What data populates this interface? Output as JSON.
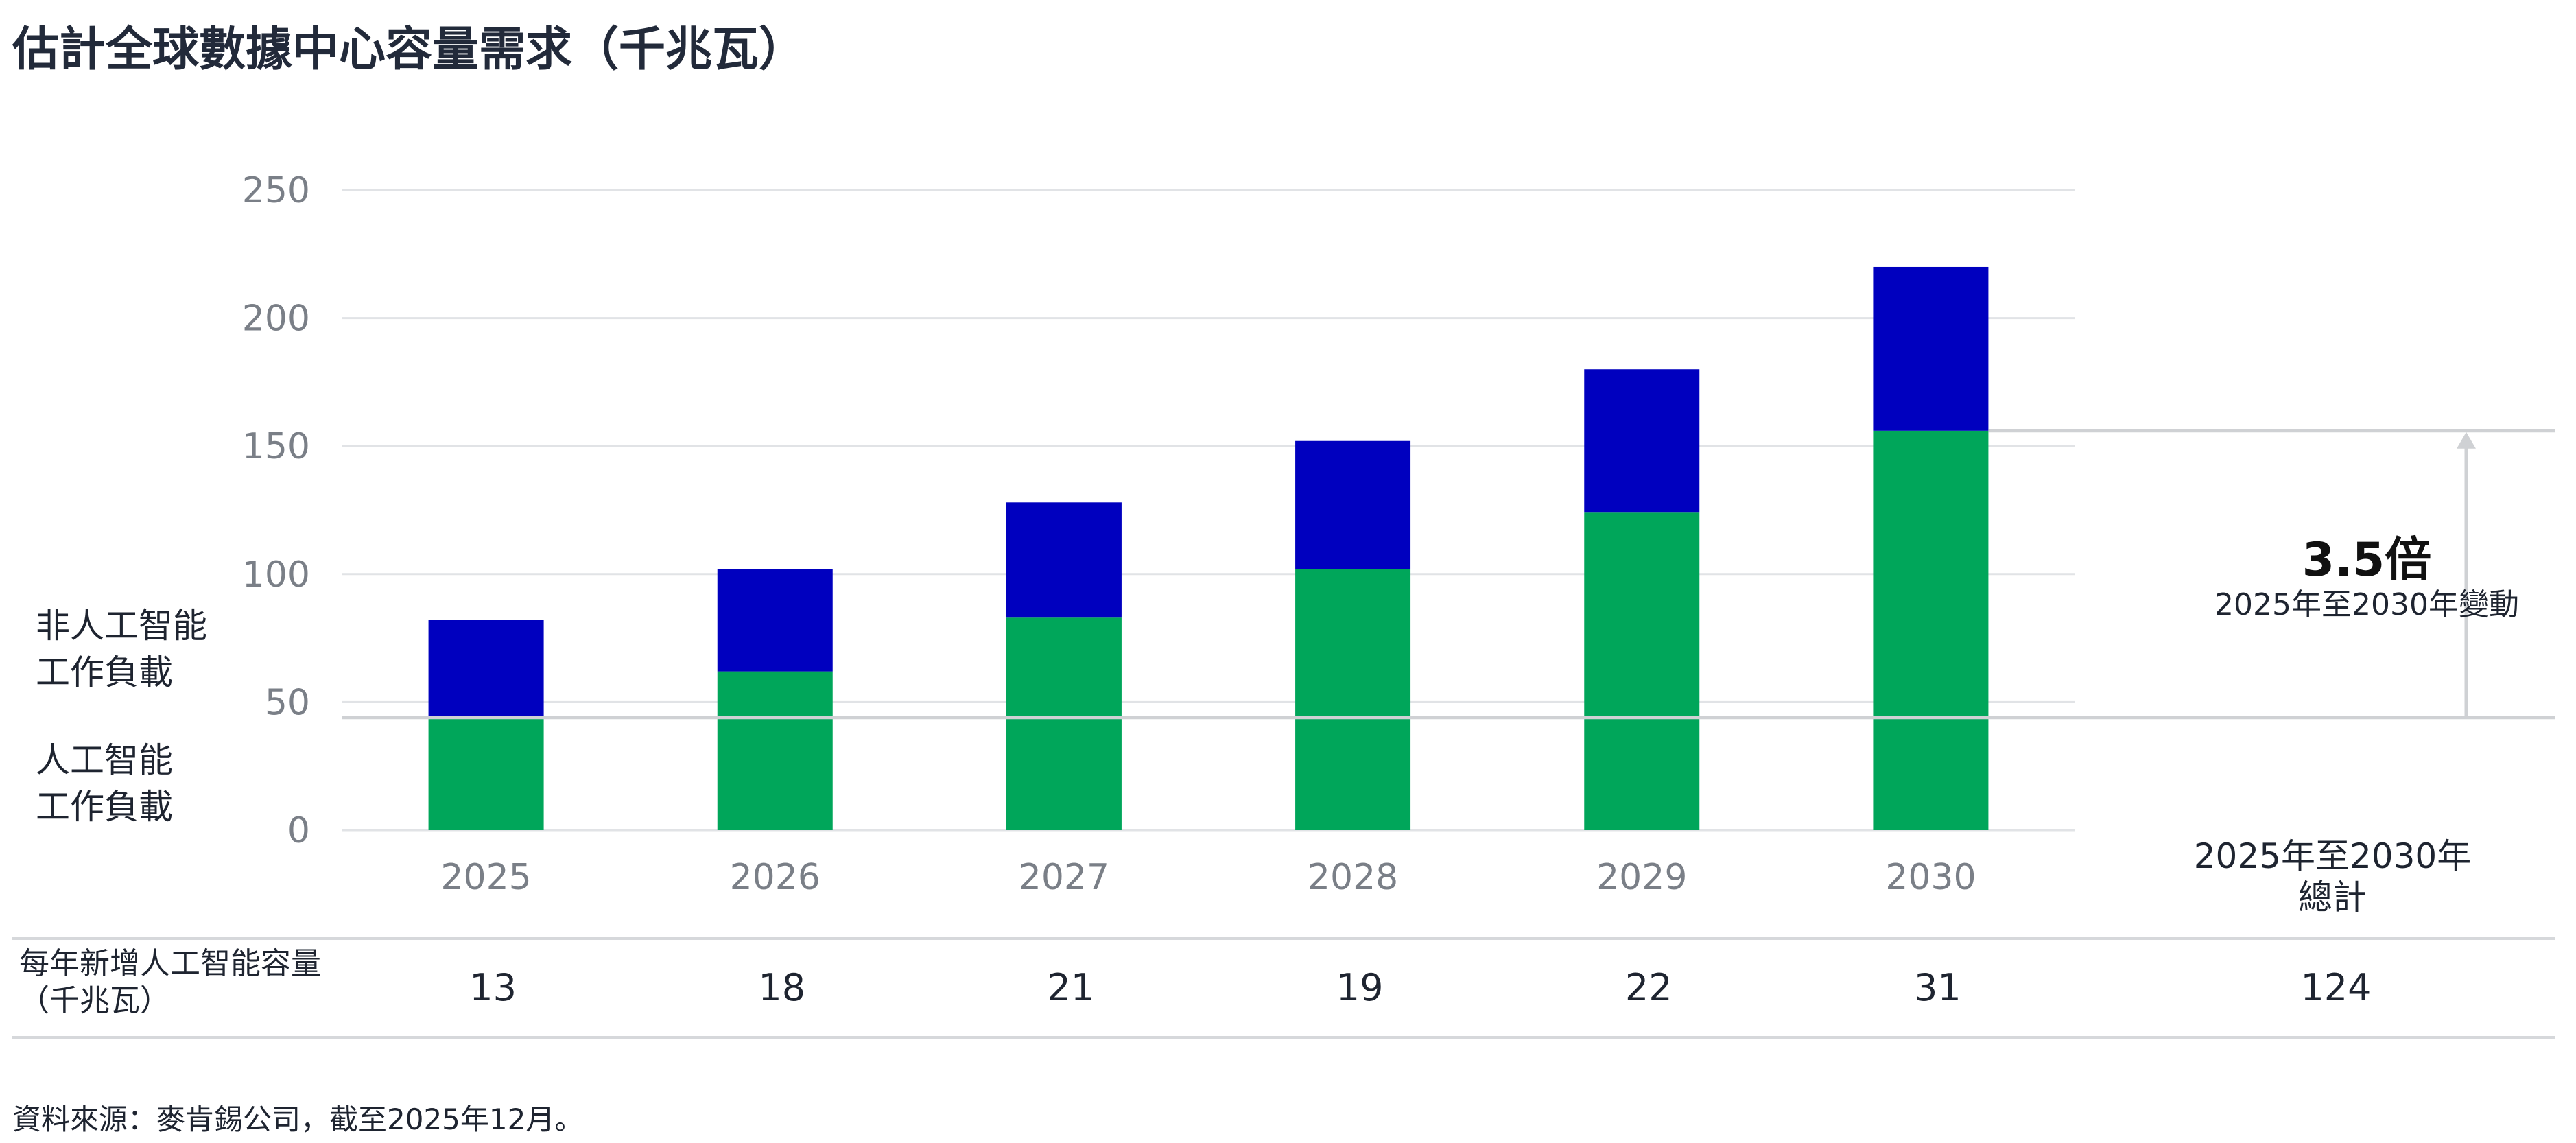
{
  "title": "估計全球數據中心容量需求（千兆瓦）",
  "chart_data": {
    "type": "bar",
    "stacked": true,
    "categories": [
      "2025",
      "2026",
      "2027",
      "2028",
      "2029",
      "2030"
    ],
    "series": [
      {
        "name": "人工智能工作負載",
        "values": [
          44,
          62,
          83,
          102,
          124,
          156
        ],
        "color": "#00a65a"
      },
      {
        "name": "非人工智能工作負載",
        "values": [
          38,
          40,
          45,
          50,
          56,
          64
        ],
        "color": "#0000bf"
      }
    ],
    "ylim": [
      0,
      250
    ],
    "yticks": [
      0,
      50,
      100,
      150,
      200,
      250
    ],
    "grid": true,
    "annotation": {
      "multiple": "3.5倍",
      "subtitle": "2025年至2030年變動"
    }
  },
  "legend": {
    "non_ai": [
      "非人工智能",
      "工作負載"
    ],
    "ai": [
      "人工智能",
      "工作負載"
    ]
  },
  "table": {
    "row_label_line1": "每年新增人工智能容量",
    "row_label_line2": "（千兆瓦）",
    "values": [
      "13",
      "18",
      "21",
      "19",
      "22",
      "31"
    ],
    "total_header_line1": "2025年至2030年",
    "total_header_line2": "總計",
    "total": "124"
  },
  "source": "資料來源：麥肯錫公司，截至2025年12月。"
}
